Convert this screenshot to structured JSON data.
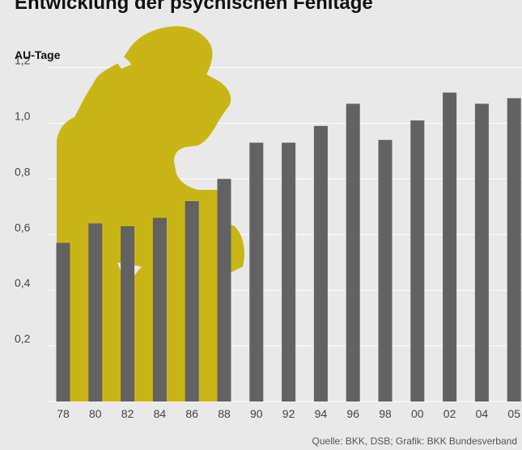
{
  "chart_data": {
    "type": "bar",
    "title": "Entwicklung der psychischen Fehltage",
    "ylabel": "AU-Tage",
    "xlabel": "",
    "categories": [
      "78",
      "80",
      "82",
      "84",
      "86",
      "88",
      "90",
      "92",
      "94",
      "96",
      "98",
      "00",
      "02",
      "04",
      "05"
    ],
    "values": [
      0.57,
      0.64,
      0.63,
      0.66,
      0.72,
      0.8,
      0.93,
      0.93,
      0.99,
      1.07,
      0.94,
      1.01,
      1.11,
      1.07,
      1.09
    ],
    "ylim": [
      0,
      1.3
    ],
    "yticks": [
      "0,2",
      "0,4",
      "0,6",
      "0,8",
      "1,0",
      "1,2"
    ],
    "grid": true,
    "source": "Quelle: BKK, DSB; Grafik: BKK Bundesverband",
    "colors": {
      "bar": "#626262",
      "figure": "#c9b616",
      "background": "#e9e9e9",
      "grid": "#ffffff"
    }
  },
  "figure": {
    "icon": "thinker-silhouette-icon"
  }
}
